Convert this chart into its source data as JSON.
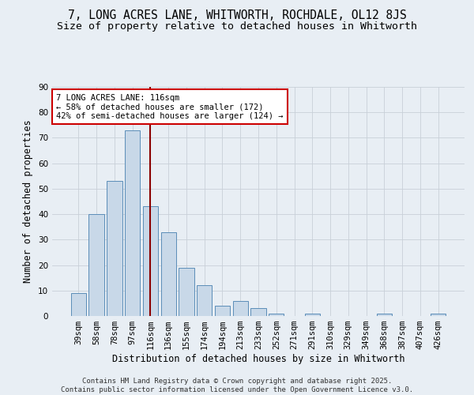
{
  "title_line1": "7, LONG ACRES LANE, WHITWORTH, ROCHDALE, OL12 8JS",
  "title_line2": "Size of property relative to detached houses in Whitworth",
  "xlabel": "Distribution of detached houses by size in Whitworth",
  "ylabel": "Number of detached properties",
  "categories": [
    "39sqm",
    "58sqm",
    "78sqm",
    "97sqm",
    "116sqm",
    "136sqm",
    "155sqm",
    "174sqm",
    "194sqm",
    "213sqm",
    "233sqm",
    "252sqm",
    "271sqm",
    "291sqm",
    "310sqm",
    "329sqm",
    "349sqm",
    "368sqm",
    "387sqm",
    "407sqm",
    "426sqm"
  ],
  "values": [
    9,
    40,
    53,
    73,
    43,
    33,
    19,
    12,
    4,
    6,
    3,
    1,
    0,
    1,
    0,
    0,
    0,
    1,
    0,
    0,
    1
  ],
  "bar_color": "#c8d8e8",
  "bar_edge_color": "#5b8db8",
  "highlight_index": 4,
  "vline_color": "#8b0000",
  "annotation_line1": "7 LONG ACRES LANE: 116sqm",
  "annotation_line2": "← 58% of detached houses are smaller (172)",
  "annotation_line3": "42% of semi-detached houses are larger (124) →",
  "annotation_box_color": "#ffffff",
  "annotation_box_edge": "#cc0000",
  "ylim": [
    0,
    90
  ],
  "yticks": [
    0,
    10,
    20,
    30,
    40,
    50,
    60,
    70,
    80,
    90
  ],
  "grid_color": "#c8d0d8",
  "background_color": "#e8eef4",
  "footer": "Contains HM Land Registry data © Crown copyright and database right 2025.\nContains public sector information licensed under the Open Government Licence v3.0.",
  "title_fontsize": 10.5,
  "subtitle_fontsize": 9.5,
  "axis_label_fontsize": 8.5,
  "tick_fontsize": 7.5,
  "footer_fontsize": 6.5
}
